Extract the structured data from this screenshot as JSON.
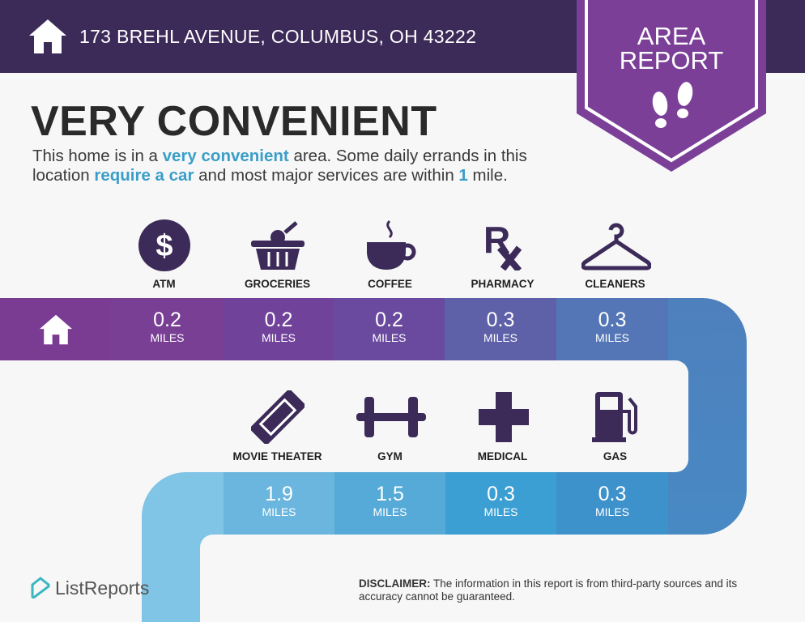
{
  "header": {
    "address": "173 BREHL AVENUE, COLUMBUS, OH 43222",
    "badge_line1": "AREA",
    "badge_line2": "REPORT",
    "colors": {
      "header_bg": "#3c2a58",
      "badge": "#7b3f98"
    }
  },
  "headline": {
    "title": "VERY CONVENIENT",
    "desc_1": "This home is in a ",
    "desc_hl1": "very convenient",
    "desc_2": " area. Some daily errands in this location ",
    "desc_hl2": "require a car",
    "desc_3": " and most major services are within ",
    "desc_hl3": "1",
    "desc_4": " mile.",
    "accent": "#3a9ec8"
  },
  "row1": [
    {
      "label": "ATM",
      "icon": "dollar-icon",
      "distance": "0.2",
      "unit": "MILES"
    },
    {
      "label": "GROCERIES",
      "icon": "grocery-basket-icon",
      "distance": "0.2",
      "unit": "MILES"
    },
    {
      "label": "COFFEE",
      "icon": "coffee-cup-icon",
      "distance": "0.2",
      "unit": "MILES"
    },
    {
      "label": "PHARMACY",
      "icon": "rx-icon",
      "distance": "0.3",
      "unit": "MILES"
    },
    {
      "label": "CLEANERS",
      "icon": "hanger-icon",
      "distance": "0.3",
      "unit": "MILES"
    }
  ],
  "row2": [
    {
      "label": "MOVIE THEATER",
      "icon": "ticket-icon",
      "distance": "1.9",
      "unit": "MILES"
    },
    {
      "label": "GYM",
      "icon": "dumbbell-icon",
      "distance": "1.5",
      "unit": "MILES"
    },
    {
      "label": "MEDICAL",
      "icon": "medical-cross-icon",
      "distance": "0.3",
      "unit": "MILES"
    },
    {
      "label": "GAS",
      "icon": "gas-pump-icon",
      "distance": "0.3",
      "unit": "MILES"
    }
  ],
  "footer": {
    "logo": "ListReports",
    "disclaimer_label": "DISCLAIMER:",
    "disclaimer_text": " The information in this report is from third-party sources and its accuracy cannot be guaranteed."
  }
}
